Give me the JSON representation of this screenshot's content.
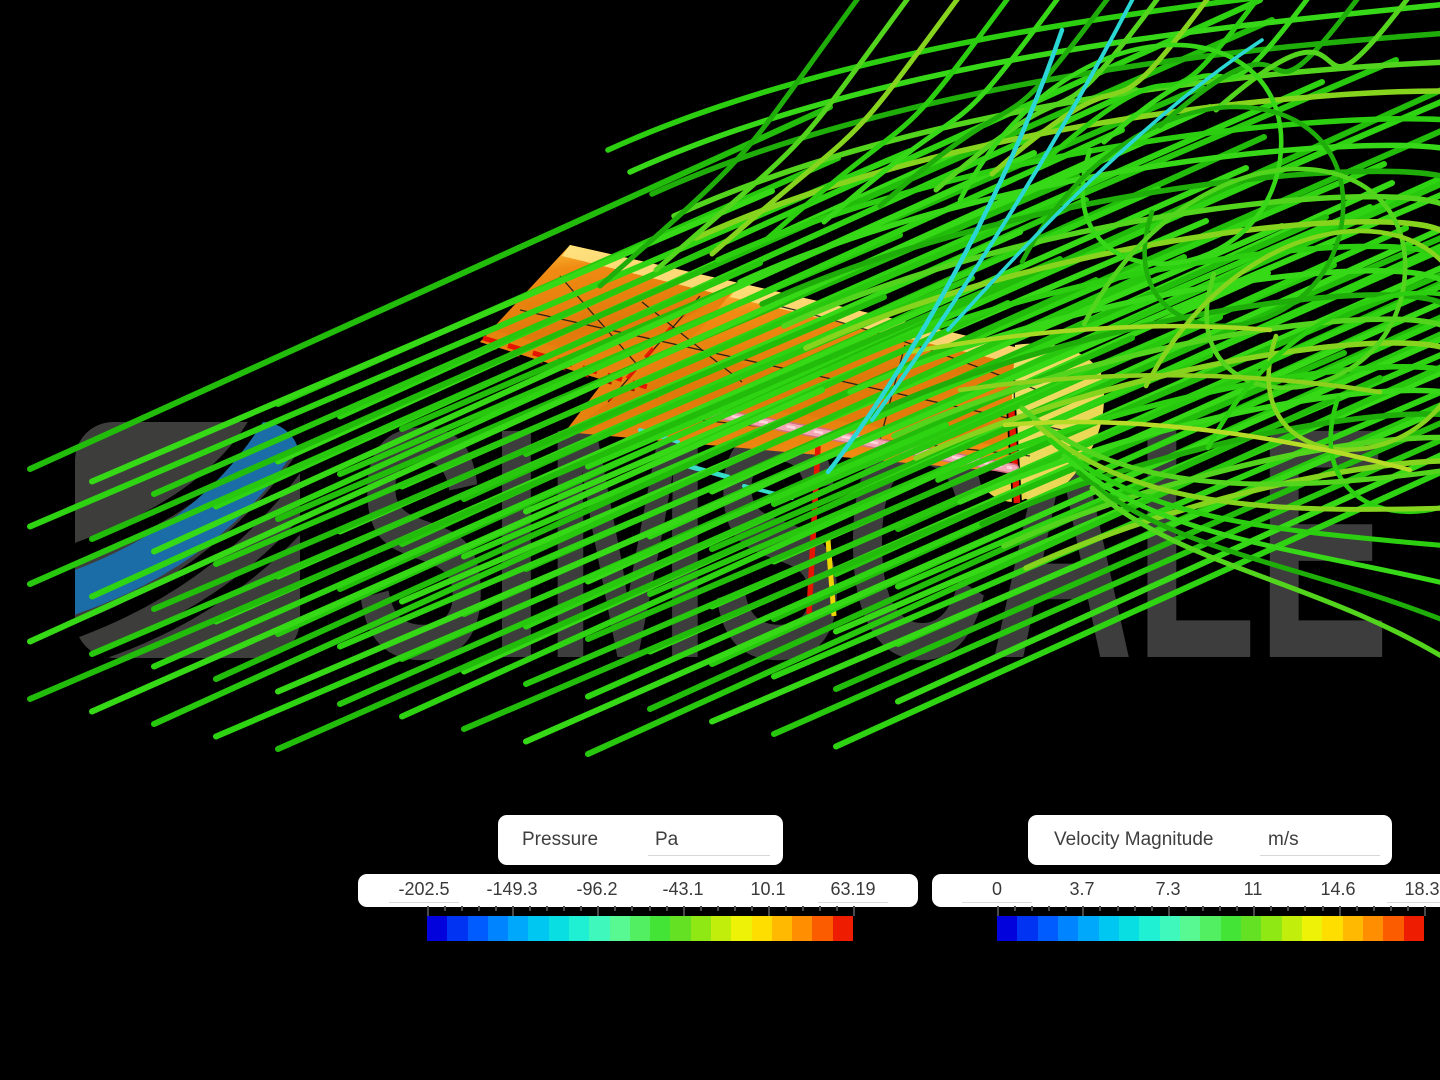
{
  "watermark": {
    "brand": "SIMSCALE"
  },
  "legends": [
    {
      "title": "Pressure",
      "unit": "Pa",
      "tick_labels": [
        "-202.5",
        "-149.3",
        "-96.2",
        "-43.1",
        "10.1",
        "63.19"
      ],
      "colormap": [
        "#0202dd",
        "#0033f2",
        "#005cff",
        "#0084ff",
        "#00a8fc",
        "#00c6f2",
        "#09dfe3",
        "#1ff0d4",
        "#3ff8bb",
        "#58f893",
        "#52ef62",
        "#44e437",
        "#63e122",
        "#8fe714",
        "#c1ee0b",
        "#eef206",
        "#fede00",
        "#ffb900",
        "#ff8f00",
        "#fb5c00",
        "#ee1c00"
      ]
    },
    {
      "title": "Velocity Magnitude",
      "unit": "m/s",
      "tick_labels": [
        "0",
        "3.7",
        "7.3",
        "11",
        "14.6",
        "18.3"
      ],
      "colormap": [
        "#0202dd",
        "#0033f2",
        "#005cff",
        "#0084ff",
        "#00a8fc",
        "#00c6f2",
        "#09dfe3",
        "#1ff0d4",
        "#3ff8bb",
        "#58f893",
        "#52ef62",
        "#44e437",
        "#63e122",
        "#8fe714",
        "#c1ee0b",
        "#eef206",
        "#fede00",
        "#ffb900",
        "#ff8f00",
        "#fb5c00",
        "#ee1c00"
      ]
    }
  ],
  "palette": {
    "background": "#000000",
    "streamline_greens": [
      "#27c80d",
      "#2ed312",
      "#22bd0a",
      "#35d916"
    ],
    "wake_greens": [
      "#2bcf10",
      "#37d818",
      "#1fae09",
      "#53d41d",
      "#86d41d"
    ],
    "surface_greens_yellow": [
      "#a6d824",
      "#8ed01e",
      "#b7dc28"
    ],
    "streamline_cyan": "#2bd7d4",
    "surface_orange": "#f08b13",
    "surface_orange_dark": "#e0790b",
    "surface_orange_deep": "#e8820e",
    "surface_yellow": "#ffd84e",
    "surface_yellow_pale": "#ffe98a",
    "endplate_yellow": "#e7d44b",
    "endplate_yellow_light": "#efe070",
    "high_pressure_red": "#e51500",
    "accent_yellow": "#f0d400",
    "probe_bar_pink": "#f2a8b4",
    "probe_bar_pink_dark": "#d4717f",
    "probe_bar_pink_light": "#ffd6de",
    "mesh_line": "#1a1a1a",
    "logo_blue": "#1a6da6",
    "logo_gray": "#3d3d3c",
    "watermark_gray": "#3d3d3d"
  }
}
